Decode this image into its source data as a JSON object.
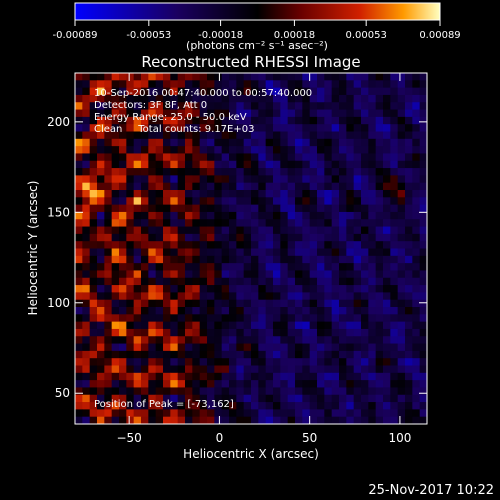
{
  "chart_data": {
    "type": "heatmap",
    "title": "Reconstructed RHESSI Image",
    "xlabel": "Heliocentric X (arcsec)",
    "ylabel": "Heliocentric Y (arcsec)",
    "xlim": [
      -80,
      115
    ],
    "ylim": [
      33,
      227
    ],
    "xticks": [
      -50,
      0,
      50,
      100
    ],
    "yticks": [
      50,
      100,
      150,
      200
    ],
    "colorbar": {
      "min": -0.00089,
      "max": 0.00089,
      "ticks": [
        "-0.00089",
        "-0.00053",
        "-0.00018",
        "0.00018",
        "0.00053",
        "0.00089"
      ],
      "unit_label": "(photons cm⁻² s⁻¹ asec⁻²)",
      "colors": [
        "#0000ff",
        "#1a0060",
        "#000000",
        "#6a0000",
        "#d02000",
        "#ff9a00",
        "#ffffc0"
      ]
    },
    "annotations": [
      "10-Sep-2016 00:47:40.000 to 00:57:40.000",
      "Detectors: 3F 8F, Att 0",
      "Energy Range: 25.0 - 50.0 keV",
      "Clean     Total counts: 9.17E+03"
    ],
    "peak_label": "Position of Peak = [-73,162]",
    "peak": [
      -73,
      162
    ],
    "grid": false
  },
  "footer": {
    "timestamp": "25-Nov-2017 10:22"
  },
  "colors": {
    "background": "#000000",
    "foreground": "#ffffff"
  }
}
